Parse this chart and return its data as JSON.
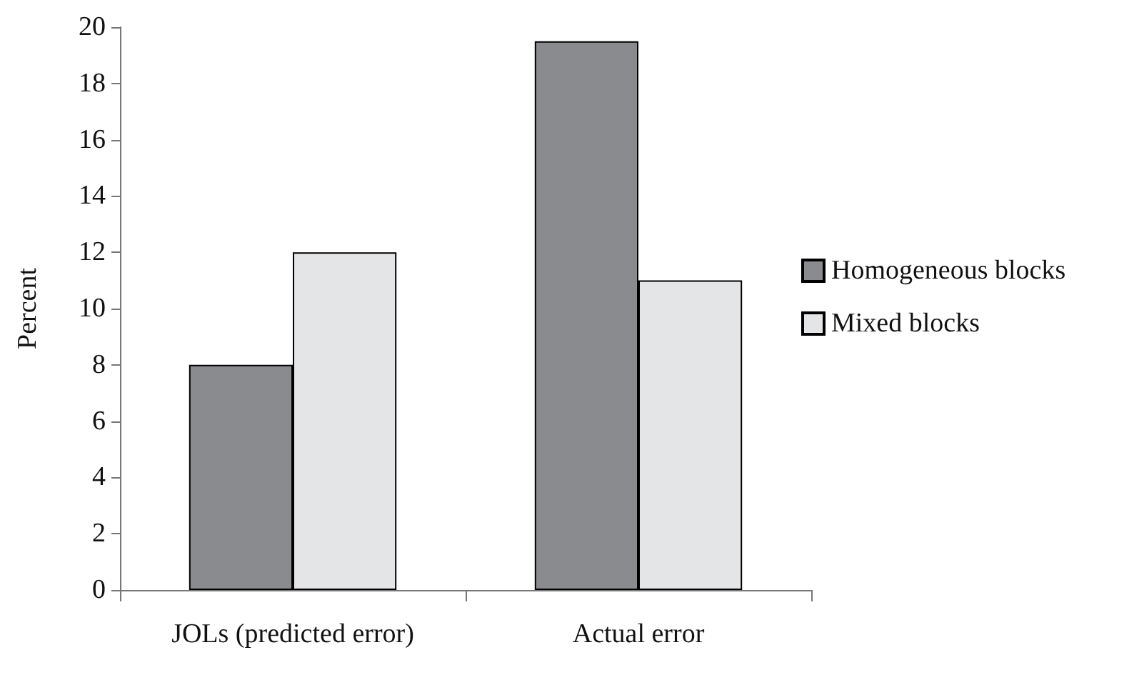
{
  "chart_data": {
    "type": "bar",
    "ylabel": "Percent",
    "categories": [
      "JOLs (predicted error)",
      "Actual error"
    ],
    "series": [
      {
        "name": "Homogeneous blocks",
        "color": "#8a8b8f",
        "values": [
          8,
          19.5
        ]
      },
      {
        "name": "Mixed blocks",
        "color": "#e4e5e7",
        "values": [
          12,
          11
        ]
      }
    ],
    "ylim": [
      0,
      20
    ],
    "yticks": [
      0,
      2,
      4,
      6,
      8,
      10,
      12,
      14,
      16,
      18,
      20
    ],
    "grid": false,
    "legend": "right"
  }
}
